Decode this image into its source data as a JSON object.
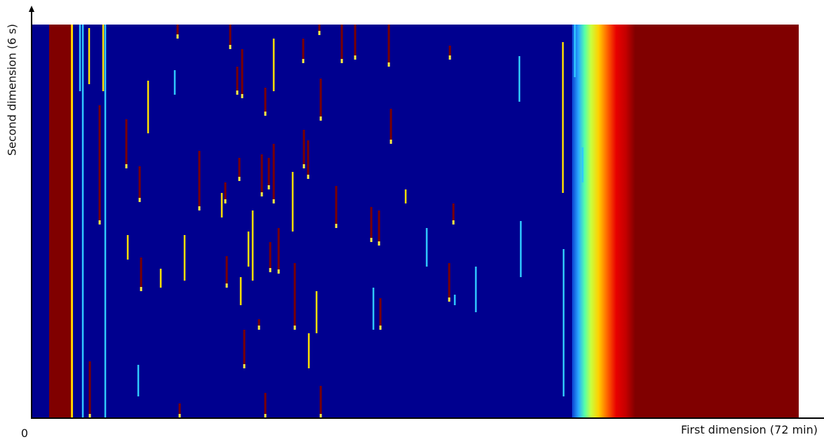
{
  "figure": {
    "y_label": "Second dimension (6 s)",
    "x_label": "First dimension (72 min)",
    "origin": 0
  }
}
